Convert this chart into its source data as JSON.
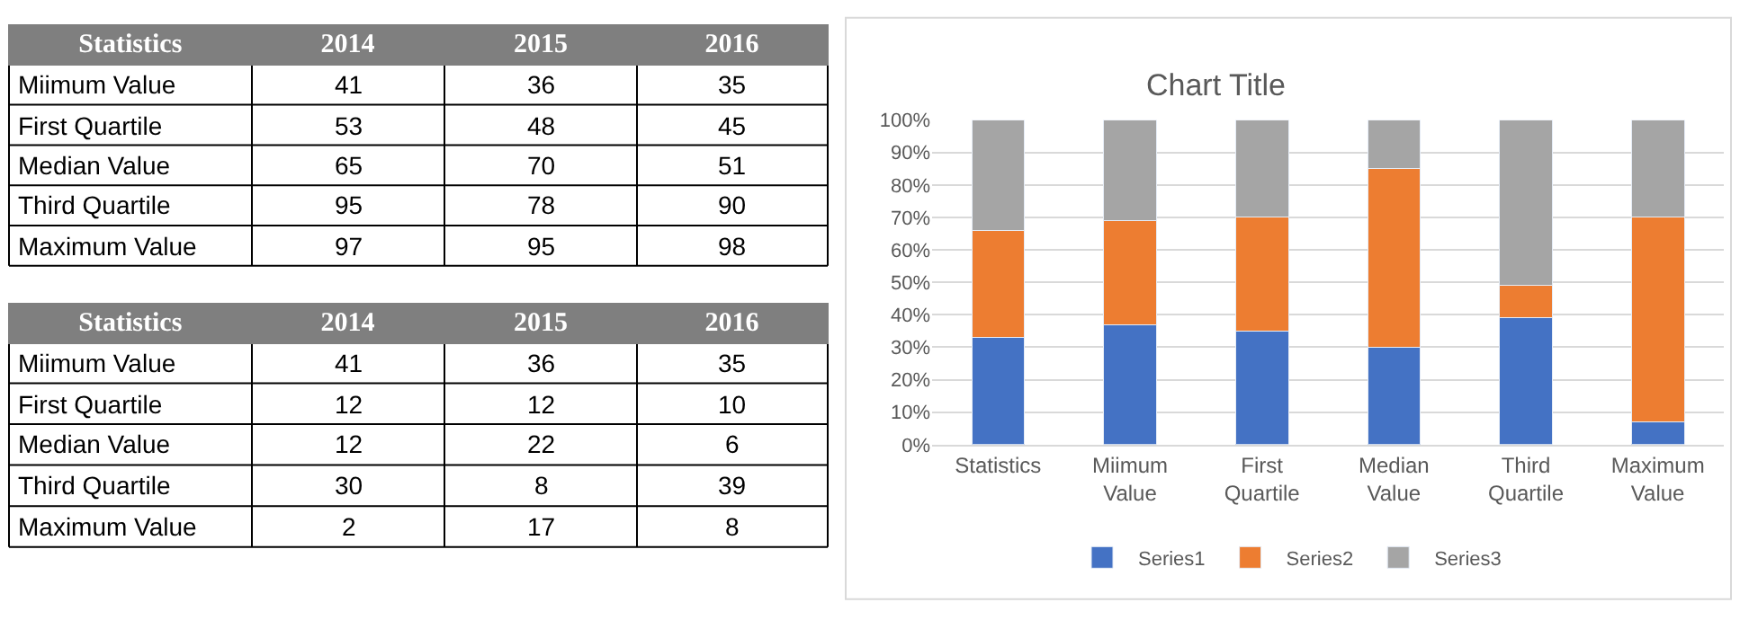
{
  "chart_data": [
    {
      "type": "heatmap",
      "ylabel": "Statistics",
      "categories": [
        "2014",
        "2015",
        "2016"
      ],
      "y_categories": [
        "Miimum Value",
        "First Quartile",
        "Median Value",
        "Third Quartile",
        "Maximum Value"
      ],
      "cells": [
        [
          41,
          36,
          35
        ],
        [
          53,
          48,
          45
        ],
        [
          65,
          70,
          51
        ],
        [
          95,
          78,
          90
        ],
        [
          97,
          95,
          98
        ]
      ],
      "data_labels": true
    },
    {
      "type": "heatmap",
      "ylabel": "Statistics",
      "categories": [
        "2014",
        "2015",
        "2016"
      ],
      "y_categories": [
        "Miimum Value",
        "First Quartile",
        "Median Value",
        "Third Quartile",
        "Maximum Value"
      ],
      "cells": [
        [
          41,
          36,
          35
        ],
        [
          12,
          12,
          10
        ],
        [
          12,
          22,
          6
        ],
        [
          30,
          8,
          39
        ],
        [
          2,
          17,
          8
        ]
      ],
      "data_labels": true
    },
    {
      "type": "bar",
      "title": "Chart Title",
      "stacked": true,
      "categories": [
        "Statistics",
        "Miimum Value",
        "First Quartile",
        "Median Value",
        "Third Quartile",
        "Maximum Value"
      ],
      "series": [
        {
          "name": "Series1",
          "color": "#4472c4",
          "values": [
            33,
            37,
            35,
            30,
            39,
            7
          ]
        },
        {
          "name": "Series2",
          "color": "#ed7d31",
          "values": [
            33,
            32,
            35,
            55,
            10,
            63
          ]
        },
        {
          "name": "Series3",
          "color": "#a5a5a5",
          "values": [
            34,
            31,
            30,
            15,
            51,
            30
          ]
        }
      ],
      "ylim": [
        0,
        100
      ],
      "yticks": [
        {
          "value": 0,
          "label": "0%"
        },
        {
          "value": 10,
          "label": "10%"
        },
        {
          "value": 20,
          "label": "20%"
        },
        {
          "value": 30,
          "label": "30%"
        },
        {
          "value": 40,
          "label": "40%"
        },
        {
          "value": 50,
          "label": "50%"
        },
        {
          "value": 60,
          "label": "60%"
        },
        {
          "value": 70,
          "label": "70%"
        },
        {
          "value": 80,
          "label": "80%"
        },
        {
          "value": 90,
          "label": "90%"
        },
        {
          "value": 100,
          "label": "100%"
        }
      ],
      "grid": "y",
      "legend": "bottom"
    }
  ]
}
